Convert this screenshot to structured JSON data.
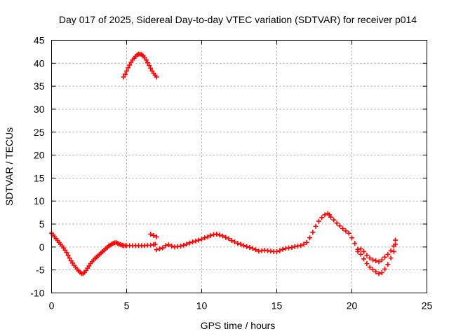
{
  "chart_data": {
    "type": "scatter",
    "title": "Day 017 of 2025, Sidereal Day-to-day VTEC variation (SDTVAR) for receiver p014",
    "xlabel": "GPS time / hours",
    "ylabel": "SDTVAR / TECUs",
    "xlim": [
      0,
      25
    ],
    "ylim": [
      -10,
      45
    ],
    "xticks": [
      0,
      5,
      10,
      15,
      20,
      25
    ],
    "yticks": [
      -10,
      -5,
      0,
      5,
      10,
      15,
      20,
      25,
      30,
      35,
      40,
      45
    ],
    "grid": true,
    "marker": "plus",
    "series": [
      {
        "name": "SDTVAR",
        "color": "#ff0000",
        "points": [
          [
            0.0,
            3.0
          ],
          [
            0.1,
            2.6
          ],
          [
            0.2,
            2.2
          ],
          [
            0.3,
            1.8
          ],
          [
            0.4,
            1.4
          ],
          [
            0.5,
            1.0
          ],
          [
            0.6,
            0.6
          ],
          [
            0.7,
            0.2
          ],
          [
            0.8,
            -0.2
          ],
          [
            0.9,
            -0.7
          ],
          [
            1.0,
            -1.2
          ],
          [
            1.1,
            -1.8
          ],
          [
            1.2,
            -2.4
          ],
          [
            1.3,
            -3.0
          ],
          [
            1.4,
            -3.5
          ],
          [
            1.5,
            -4.0
          ],
          [
            1.6,
            -4.4
          ],
          [
            1.7,
            -4.8
          ],
          [
            1.8,
            -5.2
          ],
          [
            1.9,
            -5.5
          ],
          [
            2.0,
            -5.8
          ],
          [
            2.1,
            -5.8
          ],
          [
            2.2,
            -5.5
          ],
          [
            2.3,
            -5.1
          ],
          [
            2.4,
            -4.6
          ],
          [
            2.5,
            -4.1
          ],
          [
            2.6,
            -3.6
          ],
          [
            2.7,
            -3.2
          ],
          [
            2.8,
            -2.8
          ],
          [
            2.9,
            -2.5
          ],
          [
            3.0,
            -2.2
          ],
          [
            3.1,
            -1.9
          ],
          [
            3.2,
            -1.6
          ],
          [
            3.3,
            -1.3
          ],
          [
            3.4,
            -1.0
          ],
          [
            3.5,
            -0.7
          ],
          [
            3.6,
            -0.4
          ],
          [
            3.7,
            -0.1
          ],
          [
            3.8,
            0.2
          ],
          [
            3.9,
            0.4
          ],
          [
            4.0,
            0.6
          ],
          [
            4.1,
            0.8
          ],
          [
            4.2,
            0.9
          ],
          [
            4.3,
            1.0
          ],
          [
            4.4,
            0.8
          ],
          [
            4.5,
            0.6
          ],
          [
            4.6,
            0.5
          ],
          [
            4.7,
            0.4
          ],
          [
            4.8,
            0.3
          ],
          [
            4.9,
            0.3
          ],
          [
            5.0,
            0.3
          ],
          [
            5.2,
            0.3
          ],
          [
            5.4,
            0.3
          ],
          [
            5.6,
            0.3
          ],
          [
            5.8,
            0.3
          ],
          [
            6.0,
            0.3
          ],
          [
            6.2,
            0.3
          ],
          [
            6.4,
            0.4
          ],
          [
            6.6,
            0.4
          ],
          [
            6.8,
            0.5
          ],
          [
            6.9,
            0.6
          ],
          [
            4.8,
            37.0
          ],
          [
            4.9,
            37.6
          ],
          [
            5.0,
            38.3
          ],
          [
            5.1,
            39.0
          ],
          [
            5.2,
            39.6
          ],
          [
            5.3,
            40.2
          ],
          [
            5.4,
            40.7
          ],
          [
            5.5,
            41.1
          ],
          [
            5.6,
            41.5
          ],
          [
            5.7,
            41.8
          ],
          [
            5.8,
            42.0
          ],
          [
            5.9,
            42.0
          ],
          [
            6.0,
            41.9
          ],
          [
            6.1,
            41.6
          ],
          [
            6.2,
            41.2
          ],
          [
            6.3,
            40.7
          ],
          [
            6.4,
            40.1
          ],
          [
            6.5,
            39.5
          ],
          [
            6.6,
            38.9
          ],
          [
            6.7,
            38.3
          ],
          [
            6.8,
            37.8
          ],
          [
            6.9,
            37.4
          ],
          [
            7.0,
            37.0
          ],
          [
            6.6,
            2.8
          ],
          [
            6.8,
            2.5
          ],
          [
            7.0,
            2.2
          ],
          [
            7.0,
            -0.6
          ],
          [
            7.2,
            -0.4
          ],
          [
            7.4,
            -0.2
          ],
          [
            7.6,
            0.3
          ],
          [
            7.8,
            0.5
          ],
          [
            8.0,
            0.2
          ],
          [
            8.2,
            0.0
          ],
          [
            8.4,
            0.1
          ],
          [
            8.6,
            0.2
          ],
          [
            8.8,
            0.4
          ],
          [
            9.0,
            0.6
          ],
          [
            9.2,
            0.9
          ],
          [
            9.4,
            1.1
          ],
          [
            9.6,
            1.3
          ],
          [
            9.8,
            1.5
          ],
          [
            10.0,
            1.7
          ],
          [
            10.2,
            2.0
          ],
          [
            10.4,
            2.2
          ],
          [
            10.6,
            2.5
          ],
          [
            10.8,
            2.7
          ],
          [
            11.0,
            2.8
          ],
          [
            11.2,
            2.6
          ],
          [
            11.4,
            2.4
          ],
          [
            11.6,
            2.1
          ],
          [
            11.8,
            1.8
          ],
          [
            12.0,
            1.4
          ],
          [
            12.2,
            1.1
          ],
          [
            12.4,
            0.8
          ],
          [
            12.6,
            0.6
          ],
          [
            12.8,
            0.3
          ],
          [
            13.0,
            0.1
          ],
          [
            13.2,
            -0.1
          ],
          [
            13.4,
            -0.3
          ],
          [
            13.6,
            -0.6
          ],
          [
            13.8,
            -0.9
          ],
          [
            14.0,
            -0.8
          ],
          [
            14.2,
            -0.7
          ],
          [
            14.4,
            -0.8
          ],
          [
            14.6,
            -0.9
          ],
          [
            14.8,
            -1.0
          ],
          [
            15.0,
            -1.0
          ],
          [
            15.2,
            -0.8
          ],
          [
            15.4,
            -0.5
          ],
          [
            15.6,
            -0.3
          ],
          [
            15.8,
            -0.2
          ],
          [
            16.0,
            -0.1
          ],
          [
            16.2,
            0.1
          ],
          [
            16.4,
            0.2
          ],
          [
            16.6,
            0.3
          ],
          [
            16.8,
            0.6
          ],
          [
            17.0,
            1.0
          ],
          [
            17.2,
            2.0
          ],
          [
            17.4,
            3.2
          ],
          [
            17.6,
            4.5
          ],
          [
            17.8,
            5.6
          ],
          [
            18.0,
            6.4
          ],
          [
            18.2,
            7.0
          ],
          [
            18.4,
            7.3
          ],
          [
            18.5,
            7.0
          ],
          [
            18.6,
            6.5
          ],
          [
            18.8,
            5.9
          ],
          [
            19.0,
            5.2
          ],
          [
            19.2,
            4.6
          ],
          [
            19.4,
            4.0
          ],
          [
            19.6,
            3.5
          ],
          [
            19.8,
            3.0
          ],
          [
            20.0,
            2.0
          ],
          [
            20.2,
            0.8
          ],
          [
            20.4,
            -0.5
          ],
          [
            20.6,
            -1.6
          ],
          [
            20.8,
            -2.6
          ],
          [
            21.0,
            -3.6
          ],
          [
            21.2,
            -4.4
          ],
          [
            21.4,
            -4.9
          ],
          [
            21.6,
            -5.4
          ],
          [
            21.8,
            -5.8
          ],
          [
            22.0,
            -5.6
          ],
          [
            22.2,
            -4.8
          ],
          [
            22.4,
            -3.8
          ],
          [
            22.6,
            -2.4
          ],
          [
            22.8,
            -1.0
          ],
          [
            22.9,
            0.6
          ],
          [
            20.4,
            -1.0
          ],
          [
            20.6,
            -0.4
          ],
          [
            20.8,
            -1.0
          ],
          [
            21.0,
            -1.8
          ],
          [
            21.2,
            -2.4
          ],
          [
            21.4,
            -2.8
          ],
          [
            21.6,
            -3.0
          ],
          [
            21.8,
            -3.2
          ],
          [
            22.0,
            -2.8
          ],
          [
            22.2,
            -2.2
          ],
          [
            22.4,
            -1.6
          ],
          [
            22.6,
            -0.8
          ],
          [
            22.8,
            0.2
          ],
          [
            22.9,
            1.5
          ]
        ]
      }
    ]
  }
}
